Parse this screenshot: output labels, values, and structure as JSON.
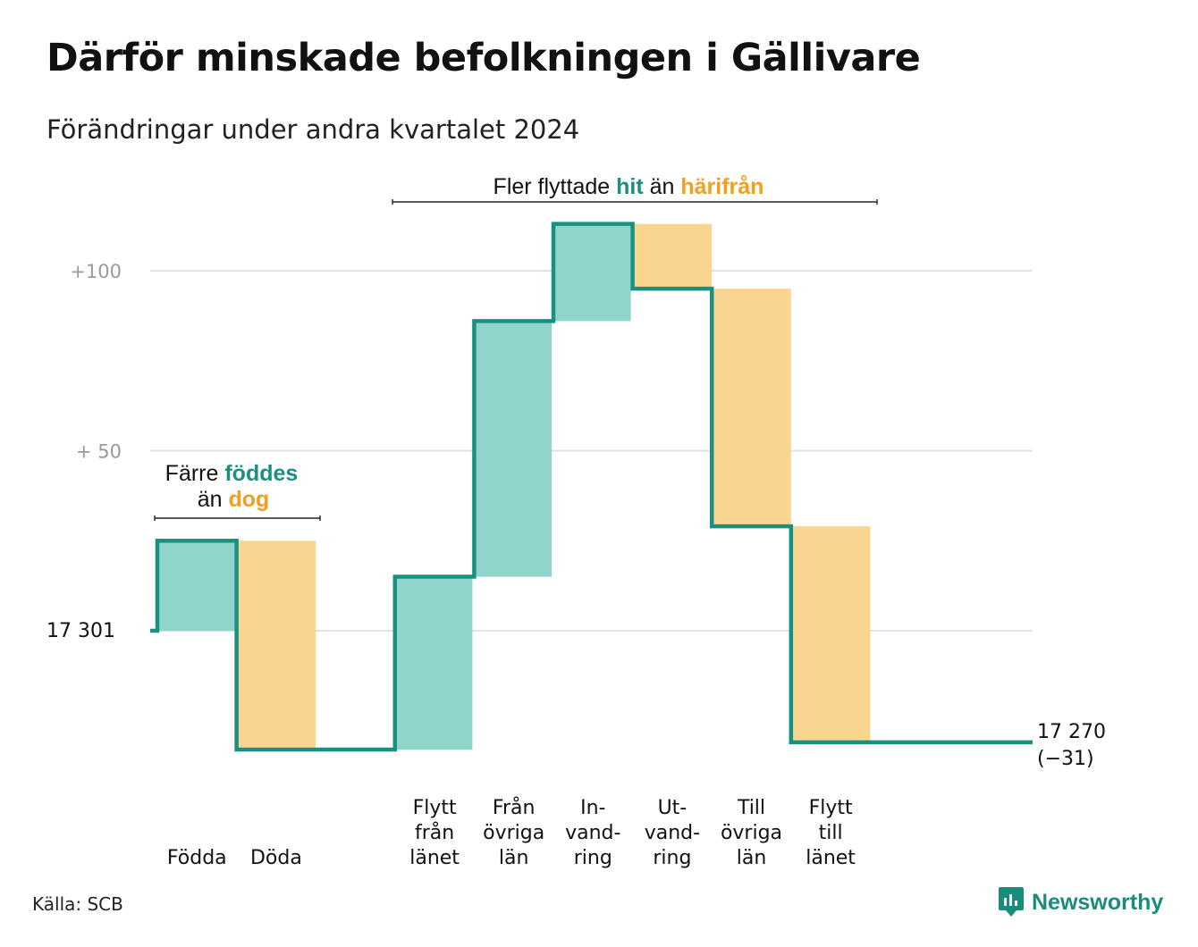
{
  "title": "Därför minskade befolkningen i Gällivare",
  "subtitle": "Förändringar under andra kvartalet 2024",
  "source": "Källa: SCB",
  "brand": {
    "name": "Newsworthy",
    "icon": "newsworthy-logo-icon"
  },
  "colors": {
    "increase": "#8fd5cc",
    "decrease": "#fad58f",
    "line": "#1a9080",
    "teal_text": "#1a9080",
    "orange_text": "#f0a020",
    "grid": "#e2e2e2",
    "tick": "#9a9a9a"
  },
  "annotations": {
    "migration": {
      "pre": "Fler flyttade ",
      "hit": "hit",
      "mid": " än ",
      "harifran": "härifrån"
    },
    "natural": {
      "line1_pre": "Färre ",
      "line1_em": "föddes",
      "line2_pre": "än ",
      "line2_em": "dog"
    }
  },
  "chart_data": {
    "type": "waterfall",
    "start": {
      "label": "17  301",
      "value": 17301
    },
    "end": {
      "label": "17 270",
      "change_label": "(−31)",
      "value": 17270
    },
    "yticks": [
      {
        "label": "+100",
        "value": 100
      },
      {
        "label": "+  50",
        "value": 50
      }
    ],
    "ylim": [
      -36,
      116
    ],
    "steps": [
      {
        "label": [
          "Födda"
        ],
        "value": 25,
        "type": "increase"
      },
      {
        "label": [
          "Döda"
        ],
        "value": -58,
        "type": "decrease"
      },
      {
        "label": [],
        "value": 0,
        "type": "gap"
      },
      {
        "label": [
          "Flytt",
          "från",
          "länet"
        ],
        "value": 48,
        "type": "increase"
      },
      {
        "label": [
          "Från",
          "övriga",
          "län"
        ],
        "value": 71,
        "type": "increase"
      },
      {
        "label": [
          "In-",
          "vand-",
          "ring"
        ],
        "value": 27,
        "type": "increase"
      },
      {
        "label": [
          "Ut-",
          "vand-",
          "ring"
        ],
        "value": -18,
        "type": "decrease"
      },
      {
        "label": [
          "Till",
          "övriga",
          "län"
        ],
        "value": -66,
        "type": "decrease"
      },
      {
        "label": [
          "Flytt",
          "till",
          "länet"
        ],
        "value": -60,
        "type": "decrease"
      }
    ]
  }
}
